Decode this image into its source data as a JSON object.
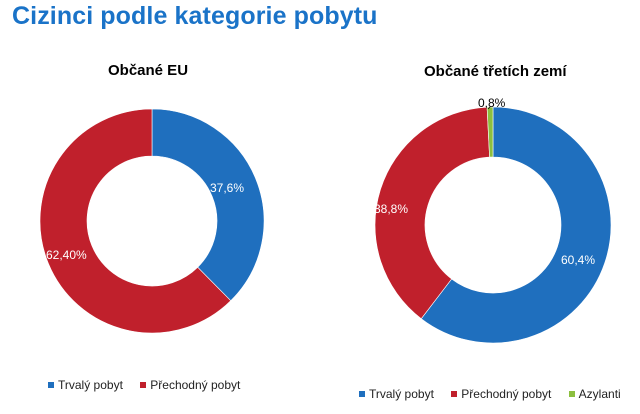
{
  "page": {
    "title": "Cizinci podle kategorie pobytu"
  },
  "colors": {
    "trvaly": "#1f6fbe",
    "prechodny": "#c0202c",
    "azylanti": "#8cbf3f",
    "title": "#1a73c8"
  },
  "chart_data": [
    {
      "type": "pie",
      "title": "Občané EU",
      "slices": [
        {
          "name": "Trvalý pobyt",
          "value": 37.6,
          "label": "37,6%",
          "color": "#1f6fbe"
        },
        {
          "name": "Přechodný pobyt",
          "value": 62.4,
          "label": "62,40%",
          "color": "#c0202c"
        }
      ],
      "legend": [
        "Trvalý pobyt",
        "Přechodný pobyt"
      ],
      "legend_position": "bottom"
    },
    {
      "type": "pie",
      "title": "Občané třetích zemí",
      "slices": [
        {
          "name": "Trvalý pobyt",
          "value": 60.4,
          "label": "60,4%",
          "color": "#1f6fbe"
        },
        {
          "name": "Přechodný pobyt",
          "value": 38.8,
          "label": "38,8%",
          "color": "#c0202c"
        },
        {
          "name": "Azylanti",
          "value": 0.8,
          "label": "0,8%",
          "color": "#8cbf3f"
        }
      ],
      "legend": [
        "Trvalý pobyt",
        "Přechodný pobyt",
        "Azylanti"
      ],
      "legend_position": "bottom"
    }
  ]
}
